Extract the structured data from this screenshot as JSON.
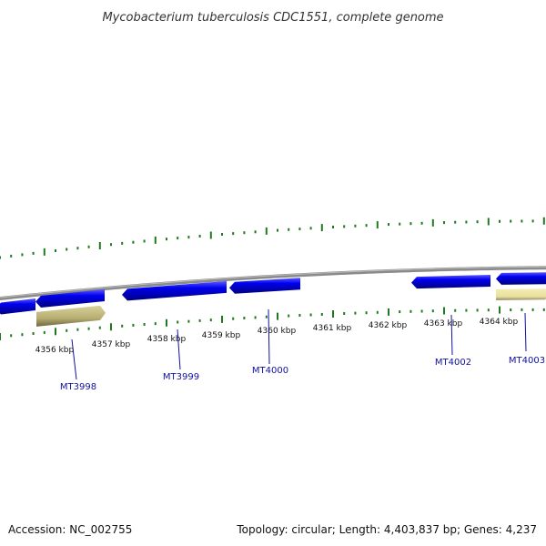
{
  "title": "Mycobacterium tuberculosis CDC1551, complete genome",
  "footer": {
    "accession": "Accession: NC_002755",
    "topology": "Topology: circular; Length: 4,403,837 bp; Genes: 4,237"
  },
  "colors": {
    "background": "#ffffff",
    "backbone": "#8a8a8a",
    "gene_forward": "#0000ee",
    "gene_reverse": "#b9b27a",
    "tick": "#1f7a1f",
    "gene_label": "#1010a0",
    "title_text": "#333333"
  },
  "scale": {
    "unit": "kbp",
    "tick_labels": [
      "4356 kbp",
      "4357 kbp",
      "4358 kbp",
      "4359 kbp",
      "4360 kbp",
      "4361 kbp",
      "4362 kbp",
      "4363 kbp",
      "4364 kbp"
    ]
  },
  "genes": [
    {
      "label": "MT3998"
    },
    {
      "label": "MT3999"
    },
    {
      "label": "MT4000"
    },
    {
      "label": "MT4002"
    },
    {
      "label": "MT4003"
    }
  ]
}
